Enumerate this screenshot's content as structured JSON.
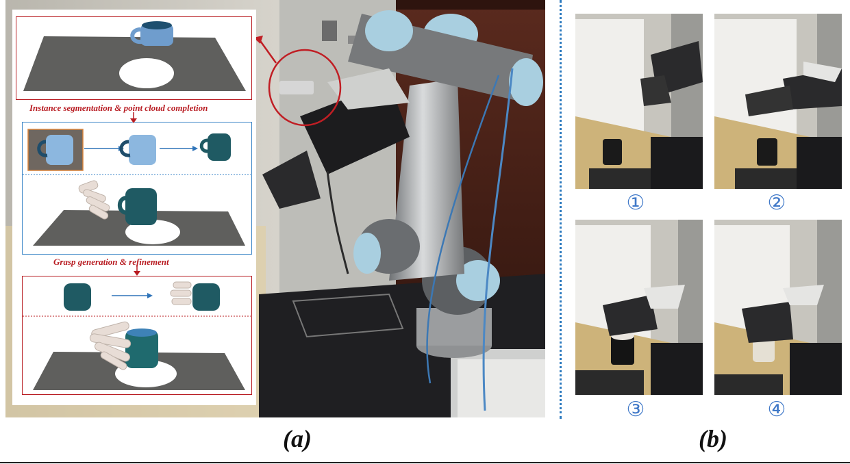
{
  "figure": {
    "caption_a": "(a)",
    "caption_b": "(b)"
  },
  "pipeline": {
    "stage1_label": "Instance segmentation  &  point cloud completion",
    "stage2_label": "Grasp generation  &  refinement"
  },
  "frames": [
    {
      "step": "①"
    },
    {
      "step": "②"
    },
    {
      "step": "③"
    },
    {
      "step": "④"
    }
  ],
  "colors": {
    "pipeline_red": "#b81c22",
    "pipeline_blue": "#3a85c7",
    "divider_blue": "#2e7bbf",
    "step_blue": "#3f78c8"
  }
}
